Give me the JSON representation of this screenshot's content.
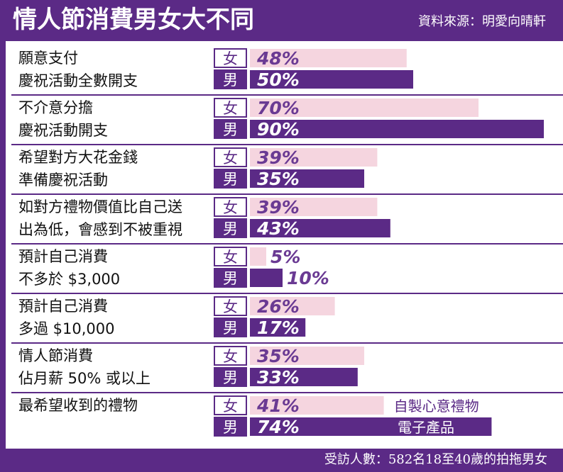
{
  "header": {
    "title": "情人節消費男女大不同",
    "source": "資料來源：明愛向晴軒"
  },
  "footer": {
    "note": "受訪人數：582名18至40歲的拍拖男女"
  },
  "colors": {
    "brand_purple": "#5b2a86",
    "female_bar": "#f5d5df",
    "male_bar": "#5b2a86",
    "female_value_text": "#6a3a93",
    "male_note_text": "#ffffff"
  },
  "chart_data": {
    "type": "bar",
    "orientation": "horizontal",
    "unit": "%",
    "xlim": [
      0,
      90
    ],
    "series": [
      {
        "name": "女",
        "values": [
          48,
          70,
          39,
          39,
          5,
          26,
          35,
          41
        ]
      },
      {
        "name": "男",
        "values": [
          50,
          90,
          35,
          43,
          10,
          17,
          33,
          74
        ]
      }
    ],
    "value_labels": {
      "女": [
        "48%",
        "70%",
        "39%",
        "39%",
        "5%",
        "26%",
        "35%",
        "41%"
      ],
      "男": [
        "50%",
        "90%",
        "35%",
        "43%",
        "10%",
        "17%",
        "33%",
        "74%"
      ]
    },
    "categories": [
      {
        "lines": [
          "願意支付",
          "慶祝活動全數開支"
        ]
      },
      {
        "lines": [
          "不介意分擔",
          "慶祝活動開支"
        ]
      },
      {
        "lines": [
          "希望對方大花金錢",
          "準備慶祝活動"
        ]
      },
      {
        "lines": [
          "如對方禮物價值比自己送",
          "出為低，會感到不被重視"
        ]
      },
      {
        "lines": [
          "預計自己消費",
          "不多於 $3,000"
        ]
      },
      {
        "lines": [
          "預計自己消費",
          "多過 $10,000"
        ]
      },
      {
        "lines": [
          "情人節消費",
          "佔月薪 50% 或以上"
        ]
      },
      {
        "lines": [
          "最希望收到的禮物"
        ]
      }
    ],
    "bar_notes": {
      "女": [
        "",
        "",
        "",
        "",
        "",
        "",
        "",
        "自製心意禮物"
      ],
      "男": [
        "",
        "",
        "",
        "",
        "",
        "",
        "",
        "電子產品"
      ]
    }
  }
}
